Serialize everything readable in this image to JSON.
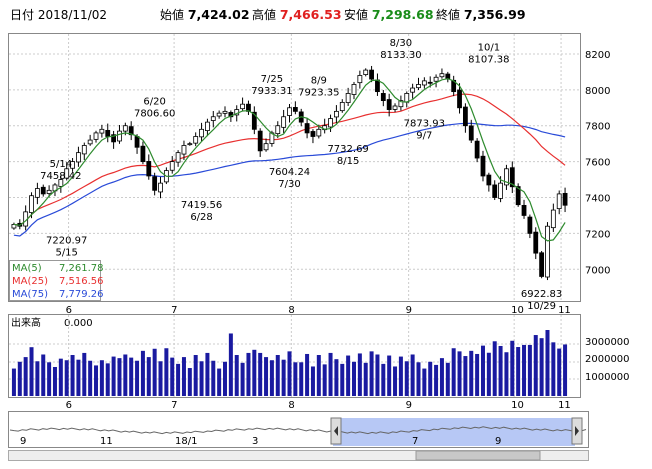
{
  "header": {
    "date_label": "日付",
    "date": "2018/11/02",
    "open_label": "始値",
    "open": "7,424.02",
    "high_label": "高値",
    "high": "7,466.53",
    "low_label": "安値",
    "low": "7,298.68",
    "close_label": "終値",
    "close": "7,356.99"
  },
  "colors": {
    "ma5": "#2e8b2e",
    "ma25": "#e83030",
    "ma75": "#2a4bd8",
    "volume": "#1a1aa0",
    "up_candle": "#ffffff",
    "down_candle": "#000000",
    "high_value": "#e02020",
    "low_value": "#1a8c1a",
    "navigator_fill": "#b7c8f5"
  },
  "legend": [
    {
      "label": "MA(5)",
      "value": "7,261.78",
      "color": "#2e8b2e"
    },
    {
      "label": "MA(25)",
      "value": "7,516.56",
      "color": "#e83030"
    },
    {
      "label": "MA(75)",
      "value": "7,779.26",
      "color": "#2a4bd8"
    }
  ],
  "volume_panel": {
    "title": "出来高",
    "value": "0.000",
    "ticks": [
      "3000000",
      "2000000",
      "1000000"
    ]
  },
  "navigator": {
    "labels": [
      "9",
      "11",
      "18/1",
      "3",
      "7",
      "9"
    ]
  },
  "chart_data": {
    "type": "candlestick",
    "x_months": [
      "6",
      "7",
      "8",
      "9",
      "10",
      "11"
    ],
    "y_ticks": [
      "8200",
      "8000",
      "7800",
      "7600",
      "7400",
      "7200",
      "7000"
    ],
    "ylim": [
      6840,
      8300
    ],
    "annotations": [
      {
        "date": "5/14",
        "value": "7458.42"
      },
      {
        "date": "5/15",
        "value": "7220.97"
      },
      {
        "date": "6/20",
        "value": "7806.60"
      },
      {
        "date": "6/28",
        "value": "7419.56"
      },
      {
        "date": "7/25",
        "value": "7933.31"
      },
      {
        "date": "7/30",
        "value": "7604.24"
      },
      {
        "date": "8/9",
        "value": "7923.35"
      },
      {
        "date": "8/15",
        "value": "7732.69"
      },
      {
        "date": "8/30",
        "value": "8133.30"
      },
      {
        "date": "9/7",
        "value": "7873.93"
      },
      {
        "date": "10/1",
        "value": "8107.38"
      },
      {
        "date": "10/29",
        "value": "6922.83"
      }
    ],
    "closes": [
      7250,
      7240,
      7320,
      7410,
      7450,
      7420,
      7440,
      7470,
      7500,
      7560,
      7600,
      7650,
      7690,
      7720,
      7760,
      7780,
      7740,
      7710,
      7770,
      7800,
      7750,
      7680,
      7600,
      7520,
      7440,
      7480,
      7550,
      7600,
      7650,
      7690,
      7700,
      7740,
      7780,
      7820,
      7850,
      7870,
      7880,
      7850,
      7890,
      7920,
      7880,
      7780,
      7660,
      7700,
      7760,
      7800,
      7850,
      7900,
      7880,
      7820,
      7760,
      7740,
      7780,
      7800,
      7840,
      7880,
      7930,
      7980,
      8030,
      8080,
      8110,
      8060,
      7990,
      7940,
      7890,
      7910,
      7940,
      7980,
      8010,
      8030,
      8050,
      8040,
      8070,
      8090,
      8060,
      7990,
      7900,
      7800,
      7720,
      7620,
      7520,
      7470,
      7400,
      7480,
      7560,
      7460,
      7360,
      7300,
      7200,
      7090,
      6960,
      7240,
      7330,
      7420,
      7357
    ]
  }
}
